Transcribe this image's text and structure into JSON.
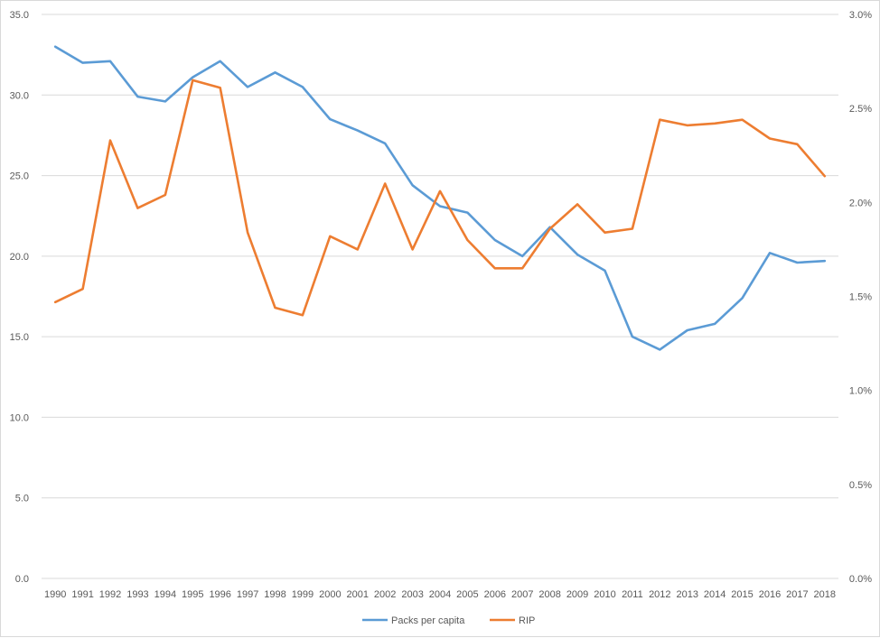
{
  "chart_data": {
    "type": "line",
    "title": "",
    "categories": [
      "1990",
      "1991",
      "1992",
      "1993",
      "1994",
      "1995",
      "1996",
      "1997",
      "1998",
      "1999",
      "2000",
      "2001",
      "2002",
      "2003",
      "2004",
      "2005",
      "2006",
      "2007",
      "2008",
      "2009",
      "2010",
      "2011",
      "2012",
      "2013",
      "2014",
      "2015",
      "2016",
      "2017",
      "2018"
    ],
    "y_left": {
      "ylim": [
        0,
        35
      ],
      "ticks": [
        "0.0",
        "5.0",
        "10.0",
        "15.0",
        "20.0",
        "25.0",
        "30.0",
        "35.0"
      ],
      "tick_values": [
        0,
        5,
        10,
        15,
        20,
        25,
        30,
        35
      ]
    },
    "y_right": {
      "ylim": [
        0,
        3.0
      ],
      "ticks": [
        "0.0%",
        "0.5%",
        "1.0%",
        "1.5%",
        "2.0%",
        "2.5%",
        "3.0%"
      ],
      "tick_values": [
        0,
        0.5,
        1.0,
        1.5,
        2.0,
        2.5,
        3.0
      ]
    },
    "series": [
      {
        "name": "Packs per capita",
        "axis": "left",
        "color": "#5b9bd5",
        "values": [
          33.0,
          32.0,
          32.1,
          29.9,
          29.6,
          31.1,
          32.1,
          30.5,
          31.4,
          30.5,
          28.5,
          27.8,
          27.0,
          24.4,
          23.1,
          22.7,
          21.0,
          20.0,
          21.8,
          20.1,
          19.1,
          15.0,
          14.2,
          15.4,
          15.8,
          17.4,
          20.2,
          19.6,
          19.7
        ]
      },
      {
        "name": "RIP",
        "axis": "right",
        "color": "#ed7d31",
        "values": [
          1.47,
          1.54,
          2.33,
          1.97,
          2.04,
          2.65,
          2.61,
          1.84,
          1.44,
          1.4,
          1.82,
          1.75,
          2.1,
          1.75,
          2.06,
          1.8,
          1.65,
          1.65,
          1.86,
          1.99,
          1.84,
          1.86,
          2.44,
          2.41,
          2.42,
          2.44,
          2.34,
          2.31,
          2.14
        ]
      }
    ],
    "grid": true,
    "legend_position": "bottom"
  }
}
